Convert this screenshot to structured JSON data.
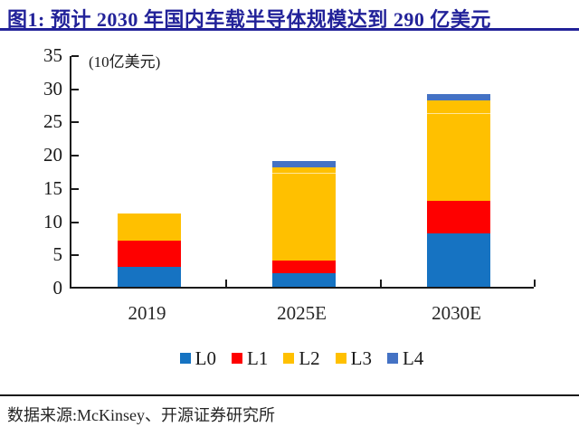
{
  "title": {
    "text": "图1: 预计 2030 年国内车载半导体规模达到 290 亿美元"
  },
  "chart_data": {
    "type": "bar",
    "stacked": true,
    "title": "预计 2030 年国内车载半导体规模达到 290 亿美元",
    "unit_label": "(10亿美元)",
    "categories": [
      "2019",
      "2025E",
      "2030E"
    ],
    "series": [
      {
        "name": "L0",
        "color": "#1673C2",
        "values": [
          3,
          2,
          8
        ]
      },
      {
        "name": "L1",
        "color": "#FE0000",
        "values": [
          4,
          2,
          5
        ]
      },
      {
        "name": "L2",
        "color": "#FFC000",
        "values": [
          4,
          13,
          13
        ]
      },
      {
        "name": "L3",
        "color": "#FFC000",
        "values": [
          0,
          1,
          2
        ]
      },
      {
        "name": "L4",
        "color": "#4472C4",
        "values": [
          0,
          1,
          1
        ]
      }
    ],
    "totals": [
      11,
      19,
      29
    ],
    "ylim": [
      0,
      35
    ],
    "yticks": [
      0,
      5,
      10,
      15,
      20,
      25,
      30,
      35
    ],
    "grid": false,
    "legend_position": "bottom"
  },
  "source": {
    "text": "数据来源:McKinsey、开源证券研究所"
  },
  "colors": {
    "title_navy": "#222299",
    "axis_black": "#1a1a1a",
    "l3_divider": "#FFE699"
  }
}
